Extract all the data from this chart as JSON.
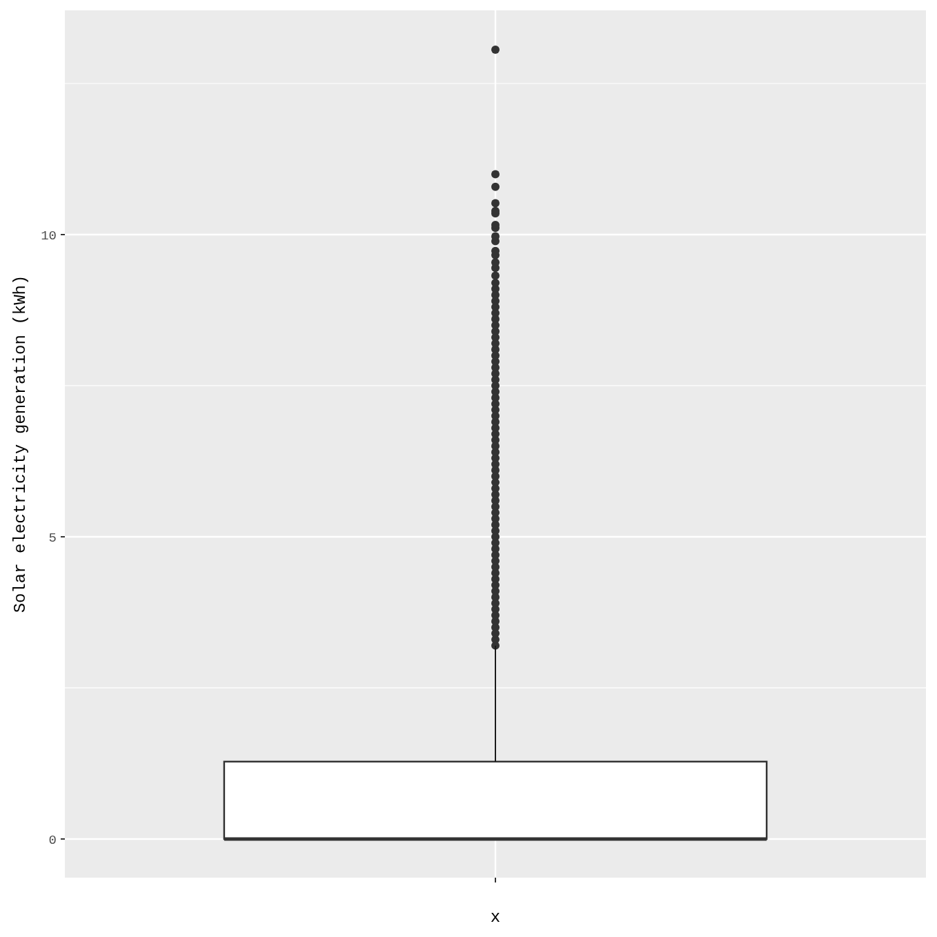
{
  "chart_data": {
    "type": "box",
    "ylabel": "Solar electricity generation (kWh)",
    "xlabel": "x",
    "categories": [
      null
    ],
    "ylim": [
      -0.64,
      13.71
    ],
    "yticks": [
      0,
      {
        "value": 2.5,
        "label": null
      },
      5,
      {
        "value": 7.5,
        "label": null
      },
      10,
      {
        "value": 12.5,
        "label": null
      }
    ],
    "grid": true,
    "boxes": [
      {
        "low": 0,
        "q1": 0,
        "median": 0,
        "q3": 1.28,
        "high": 3.2,
        "outliers": [
          3.2,
          3.3,
          3.4,
          3.5,
          3.6,
          3.7,
          3.8,
          3.9,
          4.0,
          4.1,
          4.2,
          4.3,
          4.4,
          4.5,
          4.6,
          4.7,
          4.8,
          4.9,
          5.0,
          5.1,
          5.2,
          5.3,
          5.4,
          5.5,
          5.6,
          5.7,
          5.8,
          5.9,
          6.0,
          6.1,
          6.2,
          6.3,
          6.4,
          6.5,
          6.6,
          6.7,
          6.8,
          6.9,
          7.0,
          7.1,
          7.2,
          7.3,
          7.4,
          7.5,
          7.6,
          7.7,
          7.8,
          7.9,
          8.0,
          8.1,
          8.2,
          8.3,
          8.4,
          8.5,
          8.6,
          8.7,
          8.8,
          8.9,
          9.0,
          9.1,
          9.2,
          9.32,
          9.45,
          9.54,
          9.66,
          9.73,
          9.89,
          9.97,
          10.11,
          10.16,
          10.35,
          10.39,
          10.52,
          10.79,
          11.0,
          13.06
        ]
      }
    ]
  }
}
